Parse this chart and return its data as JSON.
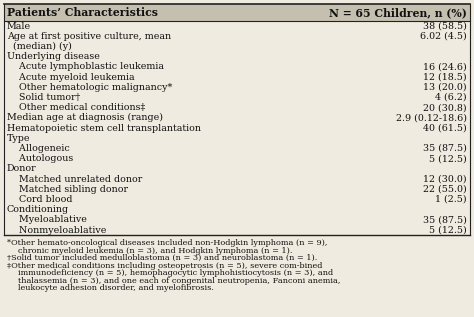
{
  "title_left": "Patients’ Characteristics",
  "title_right": "N = 65 Children, n (%)",
  "rows": [
    {
      "label": "Male",
      "value": "38 (58.5)"
    },
    {
      "label": "Age at first positive culture, mean",
      "value": "6.02 (4.5)"
    },
    {
      "label": "  (median) (y)",
      "value": ""
    },
    {
      "label": "Underlying disease",
      "value": ""
    },
    {
      "label": "    Acute lymphoblastic leukemia",
      "value": "16 (24.6)"
    },
    {
      "label": "    Acute myeloid leukemia",
      "value": "12 (18.5)"
    },
    {
      "label": "    Other hematologic malignancy*",
      "value": "13 (20.0)"
    },
    {
      "label": "    Solid tumor†",
      "value": "4 (6.2)"
    },
    {
      "label": "    Other medical conditions‡",
      "value": "20 (30.8)"
    },
    {
      "label": "Median age at diagnosis (range)",
      "value": "2.9 (0.12-18.6)"
    },
    {
      "label": "Hematopoietic stem cell transplantation",
      "value": "40 (61.5)"
    },
    {
      "label": "Type",
      "value": ""
    },
    {
      "label": "    Allogeneic",
      "value": "35 (87.5)"
    },
    {
      "label": "    Autologous",
      "value": "5 (12.5)"
    },
    {
      "label": "Donor",
      "value": ""
    },
    {
      "label": "    Matched unrelated donor",
      "value": "12 (30.0)"
    },
    {
      "label": "    Matched sibling donor",
      "value": "22 (55.0)"
    },
    {
      "label": "    Cord blood",
      "value": "1 (2.5)"
    },
    {
      "label": "Conditioning",
      "value": ""
    },
    {
      "label": "    Myeloablative",
      "value": "35 (87.5)"
    },
    {
      "label": "    Nonmyeloablative",
      "value": "5 (12.5)"
    }
  ],
  "footnote1": "*Other hemato-oncological diseases included non-Hodgkin lymphoma (n = 9), chronic myeloid leukemia (n = 3), and Hodgkin lymphoma (n = 1).",
  "footnote2": "†Solid tumor included medulloblastoma (n = 3) and neuroblastoma (n = 1).",
  "footnote3": "‡Other medical conditions including osteopetrosis (n = 5), severe com-bined immunodeficiency (n = 5), hemophagocytic lymphohistiocytosis (n = 3), and thalassemia (n = 3), and one each of congenital neutropenia, Fanconi anemia, leukocyte adhesion disorder, and myelofibrosis.",
  "bg_color": "#f0ebe0",
  "header_bg": "#c5bfb0",
  "border_color": "#222222",
  "text_color": "#111111",
  "font_size": 6.8,
  "header_font_size": 7.8,
  "footnote_font_size": 5.9
}
